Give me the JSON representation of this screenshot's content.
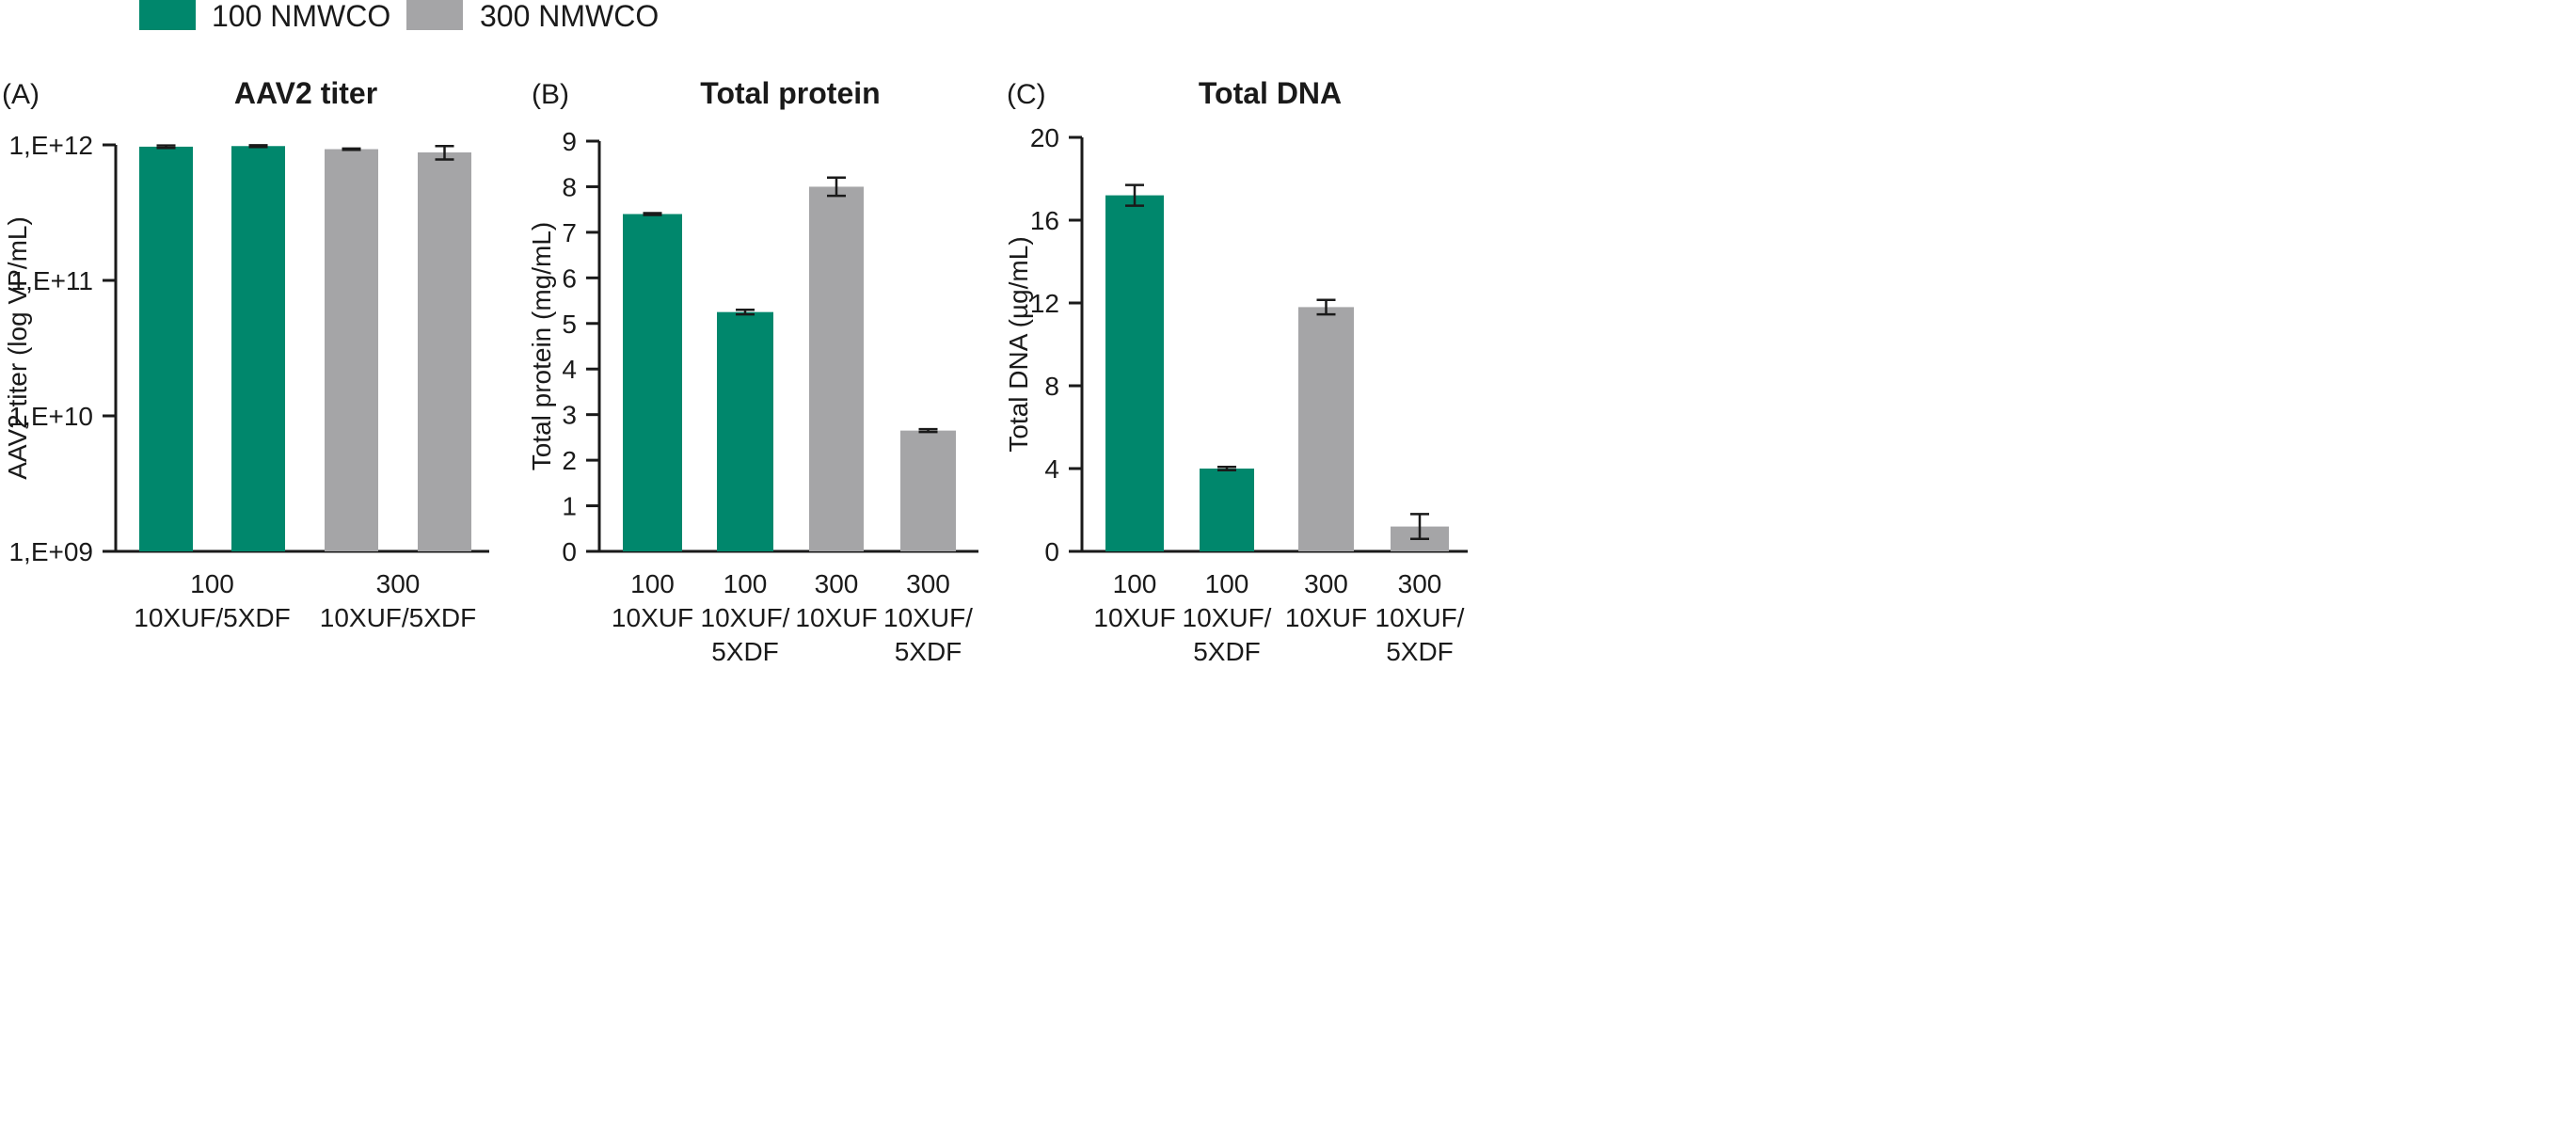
{
  "legend": [
    {
      "label": "100 NMWCO",
      "color": "#00876C"
    },
    {
      "label": "300 NMWCO",
      "color": "#A5A5A7"
    }
  ],
  "chart_data": [
    {
      "type": "bar",
      "panel": "(A)",
      "title": "AAV2 titer",
      "ylabel": "AAV2 titer (log VP/mL)",
      "yscale": "log",
      "ylim": [
        1000000000.0,
        1000000000000.0
      ],
      "yticks": [
        1000000000.0,
        10000000000.0,
        100000000000.0,
        1000000000000.0
      ],
      "ytick_labels": [
        "1,E+09",
        "1,E+10",
        "1,E+11",
        "1,E+12"
      ],
      "group_labels": [
        [
          "100",
          "10XUF/5XDF"
        ],
        [
          "300",
          "10XUF/5XDF"
        ]
      ],
      "values": [
        970000000000.0,
        980000000000.0,
        930000000000.0,
        880000000000.0
      ],
      "errors": [
        20000000000.0,
        15000000000.0,
        10000000000.0,
        100000000000.0
      ],
      "colors": [
        "#00876C",
        "#00876C",
        "#A5A5A7",
        "#A5A5A7"
      ]
    },
    {
      "type": "bar",
      "panel": "(B)",
      "title": "Total protein",
      "ylabel": "Total protein (mg/mL)",
      "yscale": "linear",
      "ylim": [
        0,
        9
      ],
      "yticks": [
        0,
        1,
        2,
        3,
        4,
        5,
        6,
        7,
        8,
        9
      ],
      "ytick_labels": [
        "0",
        "1",
        "2",
        "3",
        "4",
        "5",
        "6",
        "7",
        "8",
        "9"
      ],
      "categories": [
        [
          "100",
          "10XUF"
        ],
        [
          "100",
          "10XUF/",
          "5XDF"
        ],
        [
          "300",
          "10XUF"
        ],
        [
          "300",
          "10XUF/",
          "5XDF"
        ]
      ],
      "values": [
        7.4,
        5.25,
        8.0,
        2.65
      ],
      "errors": [
        0.02,
        0.05,
        0.2,
        0.03
      ],
      "colors": [
        "#00876C",
        "#00876C",
        "#A5A5A7",
        "#A5A5A7"
      ]
    },
    {
      "type": "bar",
      "panel": "(C)",
      "title": "Total DNA",
      "ylabel": "Total DNA (µg/mL)",
      "yscale": "linear",
      "ylim": [
        0,
        20
      ],
      "yticks": [
        0,
        4,
        8,
        12,
        16,
        20
      ],
      "ytick_labels": [
        "0",
        "4",
        "8",
        "12",
        "16",
        "20"
      ],
      "categories": [
        [
          "100",
          "10XUF"
        ],
        [
          "100",
          "10XUF/",
          "5XDF"
        ],
        [
          "300",
          "10XUF"
        ],
        [
          "300",
          "10XUF/",
          "5XDF"
        ]
      ],
      "values": [
        17.2,
        4.0,
        11.8,
        1.2
      ],
      "errors": [
        0.5,
        0.08,
        0.35,
        0.6
      ],
      "colors": [
        "#00876C",
        "#00876C",
        "#A5A5A7",
        "#A5A5A7"
      ]
    }
  ]
}
